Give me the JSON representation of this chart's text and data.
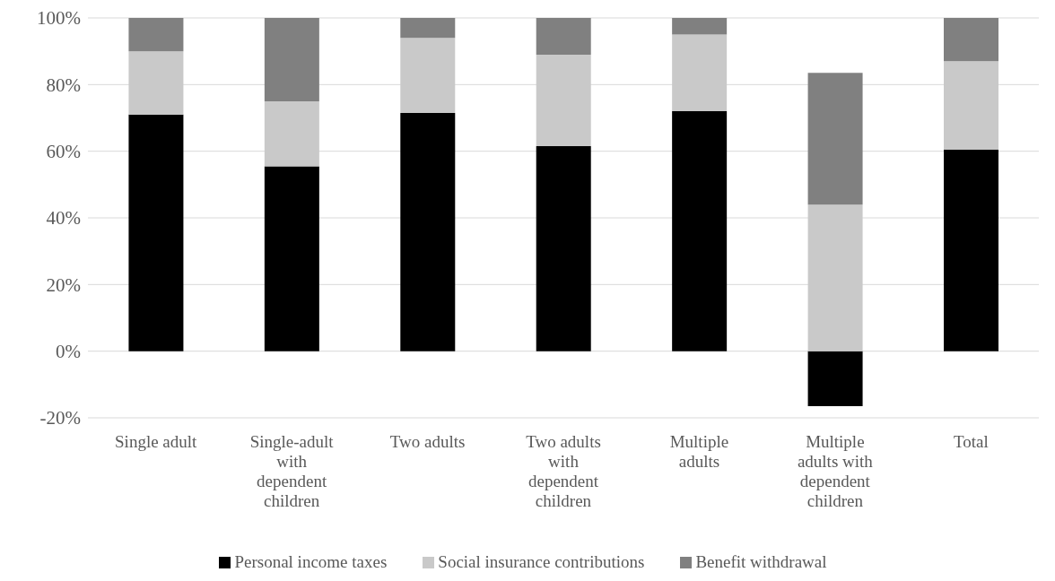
{
  "chart_data": {
    "type": "bar",
    "stacked": true,
    "categories": [
      "Single adult",
      "Single-adult with dependent children",
      "Two adults",
      "Two adults with dependent children",
      "Multiple adults",
      "Multiple adults with dependent children",
      "Total"
    ],
    "series": [
      {
        "name": "Personal income taxes",
        "color": "#000000",
        "values": [
          71,
          55.5,
          71.5,
          61.5,
          72,
          -16.5,
          60.5
        ]
      },
      {
        "name": "Social insurance contributions",
        "color": "#c9c9c9",
        "values": [
          19,
          19.5,
          22.5,
          27.5,
          23,
          44,
          26.5
        ]
      },
      {
        "name": "Benefit withdrawal",
        "color": "#808080",
        "values": [
          10,
          25,
          6,
          11,
          5,
          39.5,
          13
        ]
      }
    ],
    "ylim": [
      -20,
      100
    ],
    "yticks": [
      {
        "value": -20,
        "label": "-20%"
      },
      {
        "value": 0,
        "label": "0%"
      },
      {
        "value": 20,
        "label": "20%"
      },
      {
        "value": 40,
        "label": "40%"
      },
      {
        "value": 60,
        "label": "60%"
      },
      {
        "value": 80,
        "label": "80%"
      },
      {
        "value": 100,
        "label": "100%"
      }
    ],
    "grid": "y",
    "legend": "bottom"
  }
}
